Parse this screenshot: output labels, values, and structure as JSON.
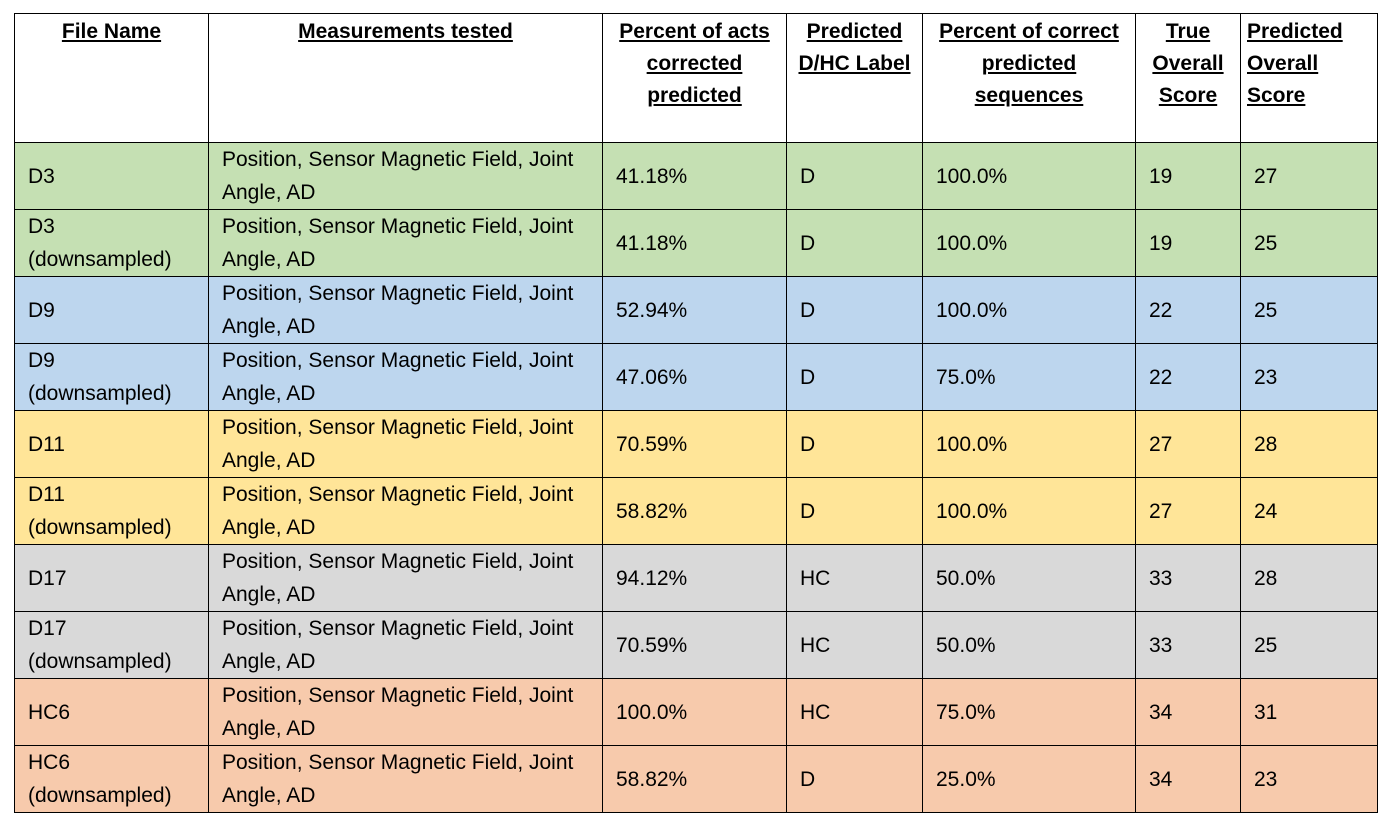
{
  "headers": {
    "file_name": "File Name",
    "measurements": "Measurements tested",
    "percent_acts": "Percent of acts corrected predicted",
    "predicted_label": "Predicted D/HC Label",
    "percent_sequences": "Percent of correct predicted sequences",
    "true_score": "True Overall Score",
    "predicted_score": "Predicted Overall Score"
  },
  "row_colors": {
    "green": "#C5E0B3",
    "blue": "#BDD6EE",
    "yellow": "#FFE598",
    "gray": "#D9D9D9",
    "orange": "#F7CAAC"
  },
  "rows": [
    {
      "file": "D3",
      "measurements": "Position, Sensor Magnetic Field, Joint Angle, AD",
      "percent_acts": "41.18%",
      "label": "D",
      "percent_sequences": "100.0%",
      "true_score": "19",
      "predicted_score": "27",
      "color": "green"
    },
    {
      "file": "D3 (downsampled)",
      "measurements": "Position, Sensor Magnetic Field, Joint Angle, AD",
      "percent_acts": "41.18%",
      "label": "D",
      "percent_sequences": "100.0%",
      "true_score": "19",
      "predicted_score": "25",
      "color": "green"
    },
    {
      "file": "D9",
      "measurements": "Position, Sensor Magnetic Field, Joint Angle, AD",
      "percent_acts": "52.94%",
      "label": "D",
      "percent_sequences": "100.0%",
      "true_score": "22",
      "predicted_score": "25",
      "color": "blue"
    },
    {
      "file": "D9 (downsampled)",
      "measurements": "Position, Sensor Magnetic Field, Joint Angle, AD",
      "percent_acts": "47.06%",
      "label": "D",
      "percent_sequences": "75.0%",
      "true_score": "22",
      "predicted_score": "23",
      "color": "blue"
    },
    {
      "file": "D11",
      "measurements": "Position, Sensor Magnetic Field, Joint Angle, AD",
      "percent_acts": "70.59%",
      "label": "D",
      "percent_sequences": "100.0%",
      "true_score": "27",
      "predicted_score": "28",
      "color": "yellow"
    },
    {
      "file": "D11 (downsampled)",
      "measurements": "Position, Sensor Magnetic Field, Joint Angle, AD",
      "percent_acts": "58.82%",
      "label": "D",
      "percent_sequences": "100.0%",
      "true_score": "27",
      "predicted_score": "24",
      "color": "yellow"
    },
    {
      "file": "D17",
      "measurements": "Position, Sensor Magnetic Field, Joint Angle, AD",
      "percent_acts": "94.12%",
      "label": "HC",
      "percent_sequences": "50.0%",
      "true_score": "33",
      "predicted_score": "28",
      "color": "gray"
    },
    {
      "file": "D17 (downsampled)",
      "measurements": "Position, Sensor Magnetic Field, Joint Angle, AD",
      "percent_acts": "70.59%",
      "label": "HC",
      "percent_sequences": "50.0%",
      "true_score": "33",
      "predicted_score": "25",
      "color": "gray"
    },
    {
      "file": "HC6",
      "measurements": "Position, Sensor Magnetic Field, Joint Angle, AD",
      "percent_acts": "100.0%",
      "label": "HC",
      "percent_sequences": "75.0%",
      "true_score": "34",
      "predicted_score": "31",
      "color": "orange"
    },
    {
      "file": "HC6 (downsampled)",
      "measurements": "Position, Sensor Magnetic Field, Joint Angle, AD",
      "percent_acts": "58.82%",
      "label": "D",
      "percent_sequences": "25.0%",
      "true_score": "34",
      "predicted_score": "23",
      "color": "orange"
    }
  ]
}
